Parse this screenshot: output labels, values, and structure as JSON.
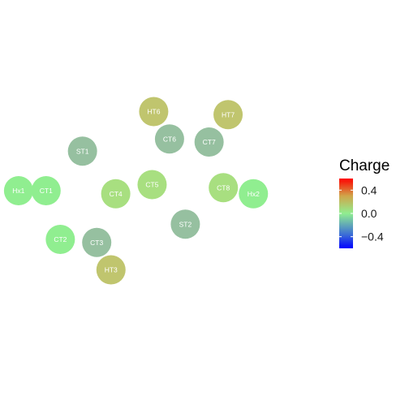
{
  "chart_data": {
    "type": "scatter",
    "title": "",
    "xlabel": "",
    "ylabel": "",
    "grid": false,
    "legend_placement": "right",
    "legend": {
      "title": "Charge",
      "ticks": [
        {
          "value": 0.4,
          "label": "0.4"
        },
        {
          "value": 0.0,
          "label": "0.0"
        },
        {
          "value": -0.4,
          "label": "−0.4"
        }
      ],
      "range": [
        -0.6,
        0.6
      ]
    },
    "colorscale": [
      {
        "value": -0.6,
        "color": "#0000ff"
      },
      {
        "value": 0.0,
        "color": "#90ee90"
      },
      {
        "value": 0.6,
        "color": "#ff0000"
      }
    ],
    "xlim": [
      0,
      10
    ],
    "ylim": [
      -2,
      2
    ],
    "points": [
      {
        "label": "Hx1",
        "x": 0.33,
        "y": 0.2,
        "charge": 0.07,
        "color": "#90ee90"
      },
      {
        "label": "CT1",
        "x": 1.2,
        "y": 0.2,
        "charge": 0.05,
        "color": "#90ee90"
      },
      {
        "label": "CT2",
        "x": 1.65,
        "y": -0.6,
        "charge": 0.02,
        "color": "#90ee90"
      },
      {
        "label": "ST1",
        "x": 2.35,
        "y": 0.85,
        "charge": -0.1,
        "color": "#96c0a0"
      },
      {
        "label": "CT3",
        "x": 2.8,
        "y": -0.65,
        "charge": -0.1,
        "color": "#96c0a0"
      },
      {
        "label": "HT3",
        "x": 3.25,
        "y": -1.1,
        "charge": 0.15,
        "color": "#c0c56e"
      },
      {
        "label": "CT4",
        "x": 3.4,
        "y": 0.15,
        "charge": 0.1,
        "color": "#a8df80"
      },
      {
        "label": "CT5",
        "x": 4.55,
        "y": 0.3,
        "charge": 0.1,
        "color": "#a8df80"
      },
      {
        "label": "HT6",
        "x": 4.6,
        "y": 1.5,
        "charge": 0.15,
        "color": "#c0c56e"
      },
      {
        "label": "CT6",
        "x": 5.1,
        "y": 1.05,
        "charge": -0.1,
        "color": "#96c0a0"
      },
      {
        "label": "ST2",
        "x": 5.6,
        "y": -0.35,
        "charge": -0.1,
        "color": "#96c0a0"
      },
      {
        "label": "CT7",
        "x": 6.35,
        "y": 1.0,
        "charge": -0.1,
        "color": "#96c0a0"
      },
      {
        "label": "HT7",
        "x": 6.95,
        "y": 1.45,
        "charge": 0.15,
        "color": "#c0c56e"
      },
      {
        "label": "CT8",
        "x": 6.8,
        "y": 0.25,
        "charge": 0.1,
        "color": "#a8df80"
      },
      {
        "label": "Hx2",
        "x": 7.75,
        "y": 0.15,
        "charge": 0.07,
        "color": "#90ee90"
      }
    ]
  }
}
